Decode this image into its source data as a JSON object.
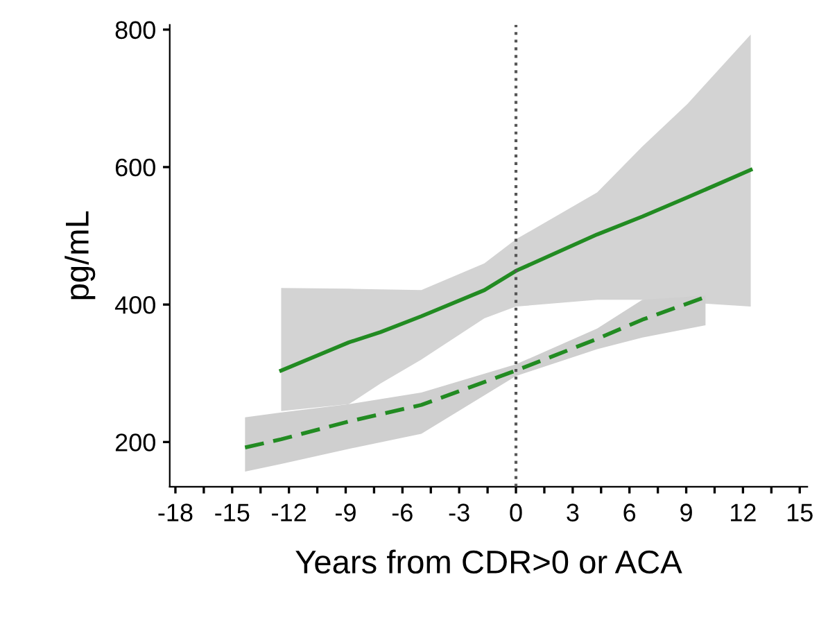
{
  "chart_data": {
    "type": "line",
    "xlabel": "Years from CDR>0 or ACA",
    "ylabel": "pg/mL",
    "xlim": [
      -18.3,
      15.4
    ],
    "ylim": [
      135,
      807
    ],
    "xticks": [
      -18,
      {
        "value": -16.5,
        "label": null
      },
      -15,
      {
        "value": -13.5,
        "label": null
      },
      -12,
      {
        "value": -10.5,
        "label": null
      },
      -9,
      {
        "value": -7.5,
        "label": null
      },
      -6,
      {
        "value": -4.5,
        "label": null
      },
      -3,
      {
        "value": -1.5,
        "label": null
      },
      0,
      {
        "value": 1.5,
        "label": null
      },
      3,
      {
        "value": 4.5,
        "label": null
      },
      6,
      {
        "value": 7.5,
        "label": null
      },
      9,
      {
        "value": 10.5,
        "label": null
      },
      12,
      {
        "value": 13.5,
        "label": null
      },
      15
    ],
    "yticks": [
      200,
      400,
      600,
      800
    ],
    "grid": false,
    "legend": false,
    "ref_lines": [
      {
        "axis": "x",
        "value": 0,
        "label": null,
        "color": "#555555",
        "line_style": "dotted"
      }
    ],
    "series": [
      {
        "color": "#228b22",
        "line_style": "solid",
        "x": [
          -12.41,
          -8.83,
          -7.16,
          -5,
          -1.67,
          0,
          4.29,
          6.68,
          9.07,
          12.41
        ],
        "values": [
          304,
          345,
          360,
          383,
          421,
          449,
          502,
          528,
          556,
          596
        ],
        "upper": [
          424,
          423,
          422,
          421,
          460,
          495,
          563,
          630,
          692,
          793
        ],
        "lower": [
          245,
          255,
          285,
          320,
          380,
          397,
          407,
          407,
          403,
          397
        ]
      },
      {
        "color": "#228b22",
        "line_style": "dashed",
        "x": [
          -14.32,
          -12.41,
          -8.83,
          -5,
          0,
          4.29,
          6.68,
          10.02
        ],
        "values": [
          192,
          204,
          230,
          254,
          304,
          350,
          378,
          411
        ],
        "upper": [
          236,
          243,
          255,
          272,
          313,
          365,
          407,
          413
        ],
        "lower": [
          157,
          168,
          190,
          212,
          296,
          335,
          352,
          370
        ]
      }
    ]
  }
}
